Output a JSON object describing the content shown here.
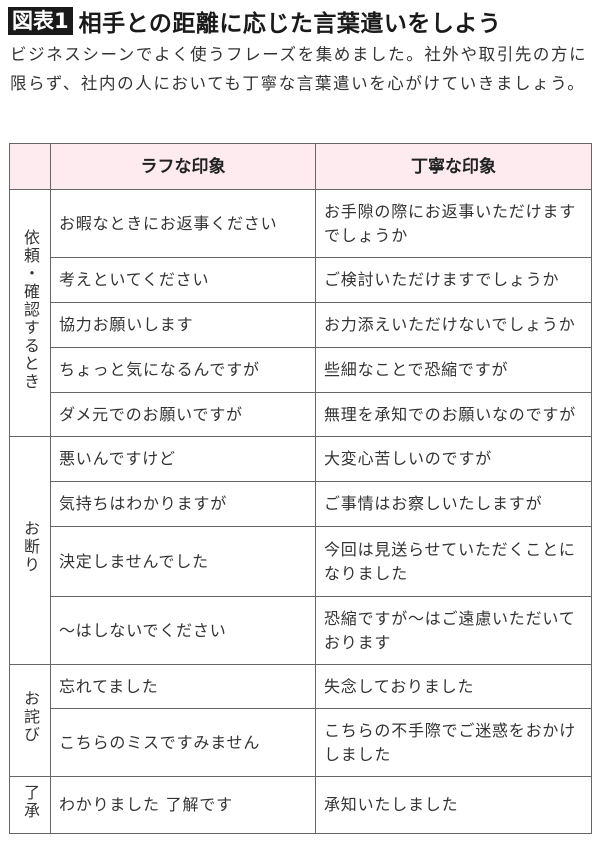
{
  "title": {
    "badge": "図表1",
    "text": "相手との距離に応じた言葉遣いをしよう"
  },
  "lead": "ビジネスシーンでよく使うフレーズを集めました。社外や取引先の方に限らず、社内の人においても丁寧な言葉遣いを心がけていきましょう。",
  "table": {
    "headers": [
      "",
      "ラフな印象",
      "丁寧な印象"
    ],
    "groups": [
      {
        "category": "依頼・確認するとき",
        "rows": [
          {
            "rough": "お暇なときにお返事ください",
            "polite": "お手隙の際にお返事いただけますでしょうか"
          },
          {
            "rough": "考えといてください",
            "polite": "ご検討いただけますでしょうか"
          },
          {
            "rough": "協力お願いします",
            "polite": "お力添えいただけないでしょうか"
          },
          {
            "rough": "ちょっと気になるんですが",
            "polite": "些細なことで恐縮ですが"
          },
          {
            "rough": "ダメ元でのお願いですが",
            "polite": "無理を承知でのお願いなのですが"
          }
        ]
      },
      {
        "category": "お断り",
        "rows": [
          {
            "rough": "悪いんですけど",
            "polite": "大変心苦しいのですが"
          },
          {
            "rough": "気持ちはわかりますが",
            "polite": "ご事情はお察しいたしますが"
          },
          {
            "rough": "決定しませんでした",
            "polite": "今回は見送らせていただくことになりました"
          },
          {
            "rough": "〜はしないでください",
            "polite": "恐縮ですが〜はご遠慮いただいております"
          }
        ]
      },
      {
        "category": "お詫び",
        "rows": [
          {
            "rough": "忘れてました",
            "polite": "失念しておりました"
          },
          {
            "rough": "こちらのミスですみません",
            "polite": "こちらの不手際でご迷惑をおかけしました"
          }
        ]
      },
      {
        "category": "了承",
        "rows": [
          {
            "rough": "わかりました 了解です",
            "polite": "承知いたしました"
          }
        ]
      }
    ]
  }
}
